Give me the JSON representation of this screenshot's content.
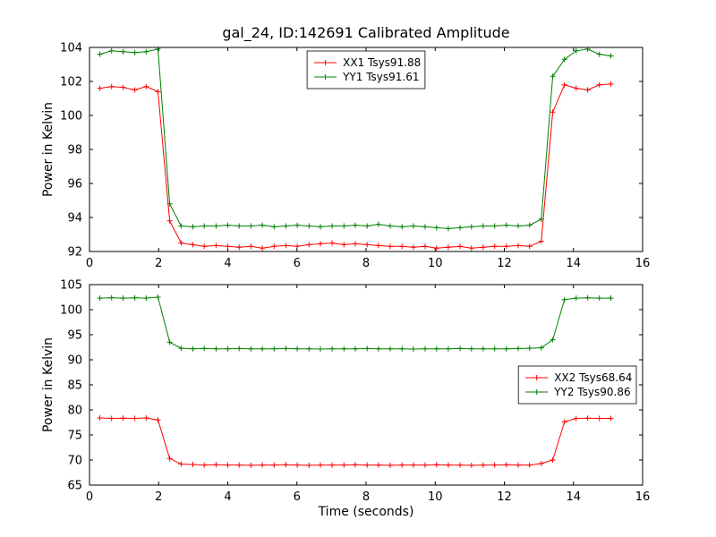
{
  "figure": {
    "title": "gal_24, ID:142691 Calibrated Amplitude",
    "xlabel": "Time (seconds)",
    "background": "#ffffff",
    "axes_color": "#000000"
  },
  "chart_data": [
    {
      "type": "line",
      "title": "gal_24, ID:142691 Calibrated Amplitude",
      "xlabel": "",
      "ylabel": "Power in Kelvin",
      "xlim": [
        0,
        16
      ],
      "ylim": [
        92,
        104
      ],
      "xticks": [
        0,
        2,
        4,
        6,
        8,
        10,
        12,
        14,
        16
      ],
      "yticks": [
        92,
        94,
        96,
        98,
        100,
        102,
        104
      ],
      "grid": false,
      "legend": {
        "position": "upper center",
        "entries": [
          "XX1 Tsys91.88",
          "YY1 Tsys91.61"
        ]
      },
      "x": [
        0.3,
        0.64,
        0.97,
        1.31,
        1.64,
        1.98,
        2.32,
        2.65,
        2.99,
        3.32,
        3.66,
        4.0,
        4.33,
        4.67,
        5.0,
        5.34,
        5.68,
        6.01,
        6.35,
        6.68,
        7.02,
        7.36,
        7.69,
        8.03,
        8.36,
        8.7,
        9.04,
        9.37,
        9.71,
        10.04,
        10.38,
        10.72,
        11.05,
        11.39,
        11.72,
        12.06,
        12.4,
        12.73,
        13.07,
        13.4,
        13.74,
        14.08,
        14.41,
        14.75,
        15.08
      ],
      "series": [
        {
          "name": "XX1 Tsys91.88",
          "color": "#ff0000",
          "marker": "+",
          "values": [
            101.6,
            101.7,
            101.65,
            101.5,
            101.7,
            101.4,
            93.8,
            92.5,
            92.4,
            92.3,
            92.35,
            92.3,
            92.25,
            92.3,
            92.2,
            92.3,
            92.35,
            92.3,
            92.4,
            92.45,
            92.5,
            92.4,
            92.45,
            92.4,
            92.35,
            92.3,
            92.3,
            92.25,
            92.3,
            92.2,
            92.25,
            92.3,
            92.2,
            92.25,
            92.3,
            92.3,
            92.35,
            92.3,
            92.6,
            100.2,
            101.8,
            101.6,
            101.5,
            101.8,
            101.85
          ]
        },
        {
          "name": "YY1 Tsys91.61",
          "color": "#008000",
          "marker": "+",
          "values": [
            103.6,
            103.8,
            103.75,
            103.7,
            103.75,
            103.9,
            94.8,
            93.5,
            93.45,
            93.5,
            93.5,
            93.55,
            93.5,
            93.5,
            93.55,
            93.45,
            93.5,
            93.55,
            93.5,
            93.45,
            93.5,
            93.5,
            93.55,
            93.5,
            93.6,
            93.5,
            93.45,
            93.5,
            93.45,
            93.4,
            93.35,
            93.4,
            93.45,
            93.5,
            93.5,
            93.55,
            93.5,
            93.55,
            93.9,
            102.3,
            103.3,
            103.8,
            103.9,
            103.6,
            103.5
          ]
        }
      ]
    },
    {
      "type": "line",
      "title": "",
      "xlabel": "Time (seconds)",
      "ylabel": "Power in Kelvin",
      "xlim": [
        0,
        16
      ],
      "ylim": [
        65,
        105
      ],
      "xticks": [
        0,
        2,
        4,
        6,
        8,
        10,
        12,
        14,
        16
      ],
      "yticks": [
        65,
        70,
        75,
        80,
        85,
        90,
        95,
        100,
        105
      ],
      "grid": false,
      "legend": {
        "position": "center right",
        "entries": [
          "XX2 Tsys68.64",
          "YY2 Tsys90.86"
        ]
      },
      "x": [
        0.3,
        0.64,
        0.97,
        1.31,
        1.64,
        1.98,
        2.32,
        2.65,
        2.99,
        3.32,
        3.66,
        4.0,
        4.33,
        4.67,
        5.0,
        5.34,
        5.68,
        6.01,
        6.35,
        6.68,
        7.02,
        7.36,
        7.69,
        8.03,
        8.36,
        8.7,
        9.04,
        9.37,
        9.71,
        10.04,
        10.38,
        10.72,
        11.05,
        11.39,
        11.72,
        12.06,
        12.4,
        12.73,
        13.07,
        13.4,
        13.74,
        14.08,
        14.41,
        14.75,
        15.08
      ],
      "series": [
        {
          "name": "XX2 Tsys68.64",
          "color": "#ff0000",
          "marker": "+",
          "values": [
            78.4,
            78.3,
            78.35,
            78.3,
            78.4,
            78.0,
            70.3,
            69.2,
            69.1,
            69.0,
            69.05,
            69.0,
            69.0,
            68.95,
            69.0,
            69.0,
            69.05,
            69.0,
            68.95,
            69.0,
            69.0,
            69.0,
            69.05,
            69.0,
            69.0,
            68.95,
            69.0,
            69.0,
            69.0,
            69.05,
            69.0,
            69.0,
            68.95,
            69.0,
            69.0,
            69.05,
            69.0,
            69.0,
            69.3,
            70.0,
            77.6,
            78.3,
            78.35,
            78.3,
            78.3
          ]
        },
        {
          "name": "YY2 Tsys90.86",
          "color": "#008000",
          "marker": "+",
          "values": [
            102.3,
            102.4,
            102.3,
            102.35,
            102.3,
            102.5,
            93.5,
            92.3,
            92.2,
            92.25,
            92.2,
            92.2,
            92.25,
            92.2,
            92.2,
            92.2,
            92.25,
            92.2,
            92.2,
            92.15,
            92.2,
            92.2,
            92.2,
            92.25,
            92.2,
            92.2,
            92.2,
            92.15,
            92.2,
            92.2,
            92.2,
            92.25,
            92.2,
            92.2,
            92.2,
            92.2,
            92.25,
            92.3,
            92.4,
            94.0,
            102.0,
            102.3,
            102.35,
            102.3,
            102.3
          ]
        }
      ]
    }
  ]
}
